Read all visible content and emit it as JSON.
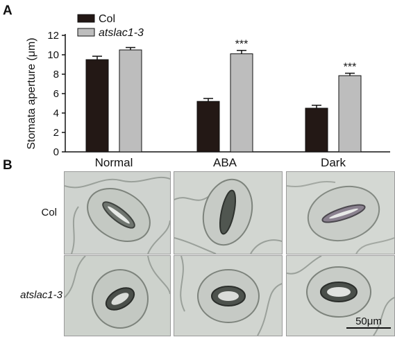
{
  "panels": {
    "a_label": "A",
    "b_label": "B"
  },
  "chart_data": {
    "type": "bar",
    "categories": [
      "Normal",
      "ABA",
      "Dark"
    ],
    "ylabel": "Stomata aperture (μm)",
    "ylim": [
      0,
      12
    ],
    "yticks": [
      0,
      2,
      4,
      6,
      8,
      10,
      12
    ],
    "series": [
      {
        "name": "Col",
        "italic": false,
        "color": "#231815",
        "values": [
          9.5,
          5.2,
          4.5
        ],
        "errors": [
          0.35,
          0.3,
          0.3
        ]
      },
      {
        "name": "atslac1-3",
        "italic": true,
        "color": "#bdbdbd",
        "values": [
          10.5,
          10.1,
          7.85
        ],
        "errors": [
          0.25,
          0.35,
          0.25
        ]
      }
    ],
    "annotations": [
      "",
      "***",
      "***"
    ],
    "legend": "top-left"
  },
  "micrographs": {
    "rows": [
      "Col",
      "atslac1-3"
    ],
    "columns": [
      "Normal",
      "ABA",
      "Dark"
    ],
    "scale_bar": "50μm"
  }
}
